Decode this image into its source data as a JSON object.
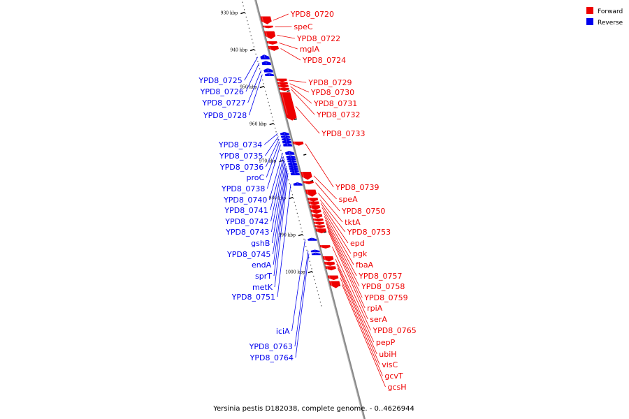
{
  "caption": "Yersinia pestis D182038, complete genome. - 0..4626944",
  "colors": {
    "forward": "#ee0000",
    "reverse": "#0000ee",
    "backbone": "#888888"
  },
  "legend": [
    {
      "label": "Forward",
      "strand": "forward",
      "color": "#ee0000"
    },
    {
      "label": "Reverse",
      "strand": "reverse",
      "color": "#0000ee"
    }
  ],
  "ticks": [
    {
      "label": "930 kbp",
      "kbp": 930
    },
    {
      "label": "940 kbp",
      "kbp": 940
    },
    {
      "label": "950 kbp",
      "kbp": 950
    },
    {
      "label": "960 kbp",
      "kbp": 960
    },
    {
      "label": "970 kbp",
      "kbp": 970
    },
    {
      "label": "980 kbp",
      "kbp": 980
    },
    {
      "label": "990 kbp",
      "kbp": 990
    },
    {
      "label": "1000 kbp",
      "kbp": 1000
    }
  ],
  "forward_genes": [
    {
      "label": "YPD8_0720",
      "start": 931.0,
      "end": 933.0
    },
    {
      "label": "speC",
      "start": 933.5,
      "end": 934.0
    },
    {
      "label": "YPD8_0722",
      "start": 935.0,
      "end": 937.0
    },
    {
      "label": "mglA",
      "start": 937.7,
      "end": 938.5
    },
    {
      "label": "YPD8_0724",
      "start": 939.0,
      "end": 940.2
    },
    {
      "label": "YPD8_0729",
      "start": 947.8,
      "end": 948.6
    },
    {
      "label": "YPD8_0730",
      "start": 948.7,
      "end": 949.5
    },
    {
      "label": "YPD8_0731",
      "start": 949.5,
      "end": 950.2
    },
    {
      "label": "YPD8_0732",
      "start": 950.3,
      "end": 951.0
    },
    {
      "label": "YPD8_0733",
      "start": 951.5,
      "end": 959.0
    },
    {
      "label": "YPD8_0739",
      "start": 964.8,
      "end": 965.8
    },
    {
      "label": "speA",
      "start": 973.0,
      "end": 975.0
    },
    {
      "label": "YPD8_0750",
      "start": 975.5,
      "end": 976.2
    },
    {
      "label": "tktA",
      "start": 977.8,
      "end": 979.6
    },
    {
      "label": "YPD8_0753",
      "start": 980.0,
      "end": 980.9
    },
    {
      "label": "epd",
      "start": 981.0,
      "end": 981.9
    },
    {
      "label": "pgk",
      "start": 982.0,
      "end": 983.1
    },
    {
      "label": "fbaA",
      "start": 983.2,
      "end": 984.2
    },
    {
      "label": "YPD8_0757",
      "start": 984.4,
      "end": 985.4
    },
    {
      "label": "YPD8_0758",
      "start": 985.6,
      "end": 986.3
    },
    {
      "label": "YPD8_0759",
      "start": 986.5,
      "end": 987.2
    },
    {
      "label": "rpiA",
      "start": 987.4,
      "end": 988.1
    },
    {
      "label": "serA",
      "start": 988.3,
      "end": 989.5
    },
    {
      "label": "YPD8_0765",
      "start": 992.8,
      "end": 993.6
    },
    {
      "label": "pepP",
      "start": 995.8,
      "end": 997.1
    },
    {
      "label": "ubiH",
      "start": 997.3,
      "end": 998.3
    },
    {
      "label": "visC",
      "start": 998.5,
      "end": 999.5
    },
    {
      "label": "gcvT",
      "start": 1001.0,
      "end": 1002.1
    },
    {
      "label": "gcsH",
      "start": 1002.5,
      "end": 1004.3
    }
  ],
  "reverse_genes": [
    {
      "label": "YPD8_0725",
      "start": 941.3,
      "end": 942.5
    },
    {
      "label": "YPD8_0726",
      "start": 943.0,
      "end": 944.0
    },
    {
      "label": "YPD8_0727",
      "start": 945.0,
      "end": 946.0
    },
    {
      "label": "YPD8_0728",
      "start": 946.3,
      "end": 947.0
    },
    {
      "label": "YPD8_0734",
      "start": 962.2,
      "end": 963.0
    },
    {
      "label": "YPD8_0735",
      "start": 963.1,
      "end": 963.7
    },
    {
      "label": "YPD8_0736",
      "start": 963.8,
      "end": 964.3
    },
    {
      "label": "proC",
      "start": 964.3,
      "end": 965.2
    },
    {
      "label": "YPD8_0738",
      "start": 965.2,
      "end": 966.0
    },
    {
      "label": "YPD8_0740",
      "start": 967.3,
      "end": 968.3
    },
    {
      "label": "YPD8_0741",
      "start": 968.5,
      "end": 969.0
    },
    {
      "label": "YPD8_0742",
      "start": 969.0,
      "end": 969.7
    },
    {
      "label": "YPD8_0743",
      "start": 969.7,
      "end": 970.3
    },
    {
      "label": "gshB",
      "start": 970.3,
      "end": 971.1
    },
    {
      "label": "YPD8_0745",
      "start": 971.1,
      "end": 971.7
    },
    {
      "label": "endA",
      "start": 971.7,
      "end": 972.3
    },
    {
      "label": "sprT",
      "start": 972.3,
      "end": 972.8
    },
    {
      "label": "metK",
      "start": 972.8,
      "end": 973.8
    },
    {
      "label": "YPD8_0751",
      "start": 975.8,
      "end": 976.6
    },
    {
      "label": "iciA",
      "start": 990.8,
      "end": 991.5
    },
    {
      "label": "YPD8_0763",
      "start": 994.0,
      "end": 994.6
    },
    {
      "label": "YPD8_0764",
      "start": 994.8,
      "end": 995.3
    }
  ]
}
